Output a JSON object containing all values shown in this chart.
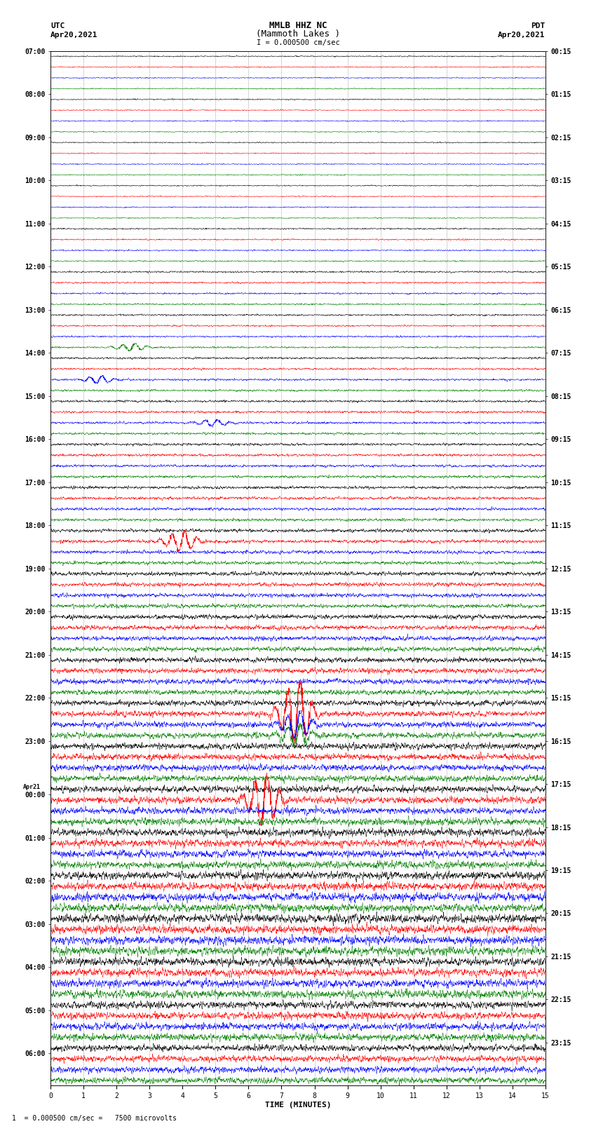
{
  "title_line1": "MMLB HHZ NC",
  "title_line2": "(Mammoth Lakes )",
  "scale_label": "I = 0.000500 cm/sec",
  "footer_label": "1  = 0.000500 cm/sec =   7500 microvolts",
  "xlabel": "TIME (MINUTES)",
  "left_label_top": "UTC",
  "left_label_date": "Apr20,2021",
  "right_label_top": "PDT",
  "right_label_date": "Apr20,2021",
  "utc_times": [
    "07:00",
    "",
    "",
    "",
    "08:00",
    "",
    "",
    "",
    "09:00",
    "",
    "",
    "",
    "10:00",
    "",
    "",
    "",
    "11:00",
    "",
    "",
    "",
    "12:00",
    "",
    "",
    "",
    "13:00",
    "",
    "",
    "",
    "14:00",
    "",
    "",
    "",
    "15:00",
    "",
    "",
    "",
    "16:00",
    "",
    "",
    "",
    "17:00",
    "",
    "",
    "",
    "18:00",
    "",
    "",
    "",
    "19:00",
    "",
    "",
    "",
    "20:00",
    "",
    "",
    "",
    "21:00",
    "",
    "",
    "",
    "22:00",
    "",
    "",
    "",
    "23:00",
    "",
    "",
    "",
    "Apr21",
    "00:00",
    "",
    "",
    "",
    "01:00",
    "",
    "",
    "",
    "02:00",
    "",
    "",
    "",
    "03:00",
    "",
    "",
    "",
    "04:00",
    "",
    "",
    "",
    "05:00",
    "",
    "",
    "",
    "06:00",
    ""
  ],
  "pdt_times": [
    "00:15",
    "",
    "",
    "",
    "01:15",
    "",
    "",
    "",
    "02:15",
    "",
    "",
    "",
    "03:15",
    "",
    "",
    "",
    "04:15",
    "",
    "",
    "",
    "05:15",
    "",
    "",
    "",
    "06:15",
    "",
    "",
    "",
    "07:15",
    "",
    "",
    "",
    "08:15",
    "",
    "",
    "",
    "09:15",
    "",
    "",
    "",
    "10:15",
    "",
    "",
    "",
    "11:15",
    "",
    "",
    "",
    "12:15",
    "",
    "",
    "",
    "13:15",
    "",
    "",
    "",
    "14:15",
    "",
    "",
    "",
    "15:15",
    "",
    "",
    "",
    "16:15",
    "",
    "",
    "",
    "17:15",
    "",
    "",
    "",
    "18:15",
    "",
    "",
    "",
    "19:15",
    "",
    "",
    "",
    "20:15",
    "",
    "",
    "",
    "21:15",
    "",
    "",
    "",
    "22:15",
    "",
    "",
    "",
    "23:15",
    ""
  ],
  "trace_color_cycle": [
    "black",
    "red",
    "blue",
    "green"
  ],
  "n_rows": 96,
  "minutes": 15,
  "fig_width": 8.5,
  "fig_height": 16.13,
  "bg_color": "white",
  "amp_profile": [
    0.04,
    0.04,
    0.04,
    0.04,
    0.04,
    0.04,
    0.04,
    0.04,
    0.04,
    0.04,
    0.04,
    0.04,
    0.04,
    0.04,
    0.04,
    0.04,
    0.05,
    0.05,
    0.05,
    0.05,
    0.06,
    0.06,
    0.06,
    0.06,
    0.06,
    0.06,
    0.06,
    0.06,
    0.07,
    0.07,
    0.07,
    0.07,
    0.08,
    0.08,
    0.08,
    0.08,
    0.09,
    0.09,
    0.09,
    0.09,
    0.1,
    0.1,
    0.1,
    0.1,
    0.12,
    0.12,
    0.12,
    0.12,
    0.14,
    0.14,
    0.14,
    0.14,
    0.16,
    0.16,
    0.16,
    0.16,
    0.18,
    0.18,
    0.18,
    0.18,
    0.2,
    0.2,
    0.2,
    0.2,
    0.22,
    0.22,
    0.22,
    0.22,
    0.24,
    0.24,
    0.24,
    0.24,
    0.26,
    0.26,
    0.26,
    0.26,
    0.28,
    0.28,
    0.28,
    0.28,
    0.3,
    0.3,
    0.3,
    0.3,
    0.28,
    0.28,
    0.28,
    0.28,
    0.25,
    0.25,
    0.25,
    0.25,
    0.22,
    0.22,
    0.22,
    0.22
  ],
  "event_row_61": {
    "spike_t": 7.5,
    "spike_amp": 3.0,
    "spike_color": "red"
  },
  "event_row_64": {
    "spike_t": 5.0,
    "spike_amp": 2.0,
    "spike_color": "red"
  },
  "event_row_28_green": {
    "spike_t": 2.5,
    "spike_amp": 2.5
  },
  "event_row_32_blue": {
    "spike_t": 5.5,
    "spike_amp": 2.0
  },
  "event_row_69_black": {
    "spike_t": 6.5,
    "spike_amp": 3.0
  }
}
